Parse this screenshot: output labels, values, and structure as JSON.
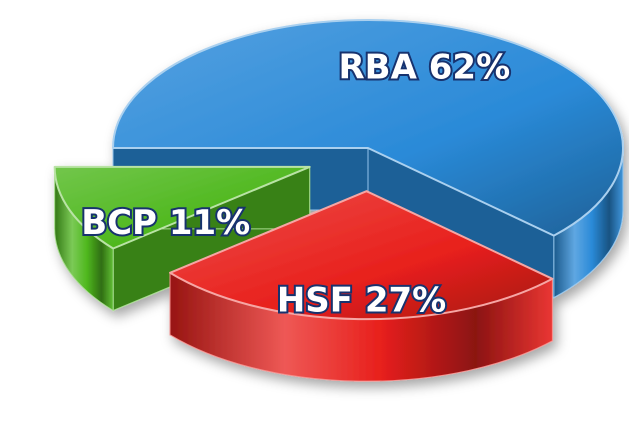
{
  "chart_data": {
    "type": "pie",
    "categories": [
      "RBA",
      "HSF",
      "BCP"
    ],
    "values": [
      62,
      27,
      11
    ],
    "value_labels": [
      "62%",
      "27%",
      "11%"
    ],
    "colors": [
      "#2a8ad8",
      "#e8201c",
      "#4fb81e"
    ]
  }
}
